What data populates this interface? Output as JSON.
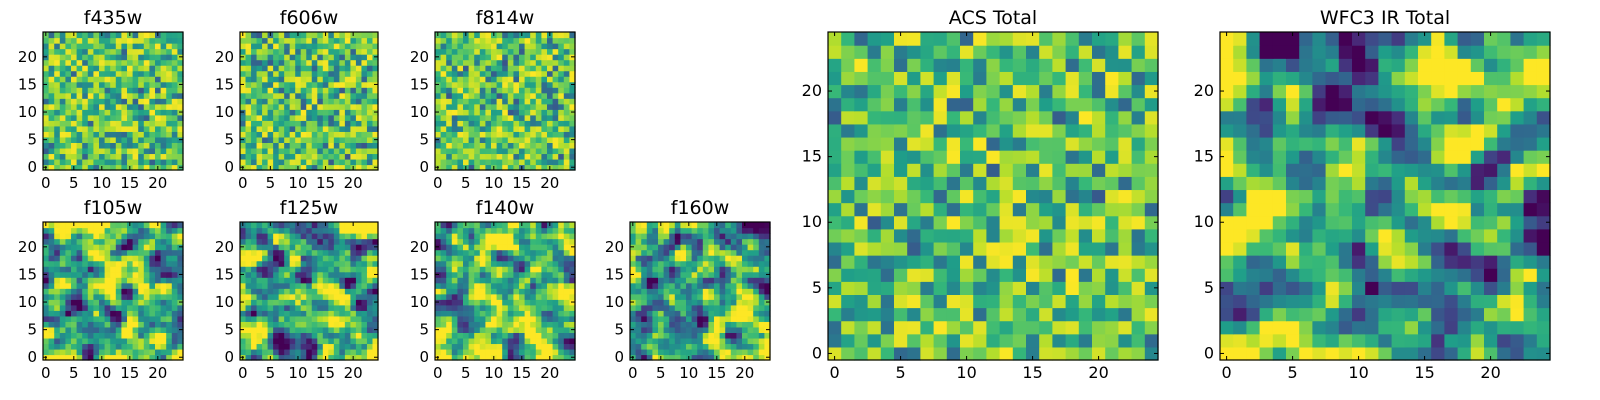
{
  "chart_data": [
    {
      "type": "heatmap",
      "title": "f435w",
      "xlim": [
        0,
        24
      ],
      "ylim": [
        0,
        24
      ],
      "xticks": [
        "0",
        "5",
        "10",
        "15",
        "20"
      ],
      "yticks": [
        "0",
        "5",
        "10",
        "15",
        "20"
      ],
      "colormap": "viridis",
      "grid": false,
      "pixel_pattern": "uniform noise"
    },
    {
      "type": "heatmap",
      "title": "f606w",
      "xlim": [
        0,
        24
      ],
      "ylim": [
        0,
        24
      ],
      "xticks": [
        "0",
        "5",
        "10",
        "15",
        "20"
      ],
      "yticks": [
        "0",
        "5",
        "10",
        "15",
        "20"
      ],
      "colormap": "viridis",
      "grid": false,
      "pixel_pattern": "uniform noise"
    },
    {
      "type": "heatmap",
      "title": "f814w",
      "xlim": [
        0,
        24
      ],
      "ylim": [
        0,
        24
      ],
      "xticks": [
        "0",
        "5",
        "10",
        "15",
        "20"
      ],
      "yticks": [
        "0",
        "5",
        "10",
        "15",
        "20"
      ],
      "colormap": "viridis",
      "grid": false,
      "pixel_pattern": "uniform noise"
    },
    {
      "type": "heatmap",
      "title": "f105w",
      "xlim": [
        0,
        24
      ],
      "ylim": [
        0,
        24
      ],
      "xticks": [
        "0",
        "5",
        "10",
        "15",
        "20"
      ],
      "yticks": [
        "0",
        "5",
        "10",
        "15",
        "20"
      ],
      "colormap": "viridis",
      "grid": false,
      "pixel_pattern": "smooth noise"
    },
    {
      "type": "heatmap",
      "title": "f125w",
      "xlim": [
        0,
        24
      ],
      "ylim": [
        0,
        24
      ],
      "xticks": [
        "0",
        "5",
        "10",
        "15",
        "20"
      ],
      "yticks": [
        "0",
        "5",
        "10",
        "15",
        "20"
      ],
      "colormap": "viridis",
      "grid": false,
      "pixel_pattern": "smooth noise"
    },
    {
      "type": "heatmap",
      "title": "f140w",
      "xlim": [
        0,
        24
      ],
      "ylim": [
        0,
        24
      ],
      "xticks": [
        "0",
        "5",
        "10",
        "15",
        "20"
      ],
      "yticks": [
        "0",
        "5",
        "10",
        "15",
        "20"
      ],
      "colormap": "viridis",
      "grid": false,
      "pixel_pattern": "smooth noise"
    },
    {
      "type": "heatmap",
      "title": "f160w",
      "xlim": [
        0,
        24
      ],
      "ylim": [
        0,
        24
      ],
      "xticks": [
        "0",
        "5",
        "10",
        "15",
        "20"
      ],
      "yticks": [
        "0",
        "5",
        "10",
        "15",
        "20"
      ],
      "colormap": "viridis",
      "grid": false,
      "pixel_pattern": "smooth noise"
    },
    {
      "type": "heatmap",
      "title": "ACS Total",
      "xlim": [
        0,
        24
      ],
      "ylim": [
        0,
        24
      ],
      "xticks": [
        "0",
        "5",
        "10",
        "15",
        "20"
      ],
      "yticks": [
        "0",
        "5",
        "10",
        "15",
        "20"
      ],
      "colormap": "viridis",
      "grid": false,
      "pixel_pattern": "uniform noise"
    },
    {
      "type": "heatmap",
      "title": "WFC3 IR Total",
      "xlim": [
        0,
        24
      ],
      "ylim": [
        0,
        24
      ],
      "xticks": [
        "0",
        "5",
        "10",
        "15",
        "20"
      ],
      "yticks": [
        "0",
        "5",
        "10",
        "15",
        "20"
      ],
      "colormap": "viridis",
      "grid": false,
      "pixel_pattern": "smooth noise"
    }
  ]
}
